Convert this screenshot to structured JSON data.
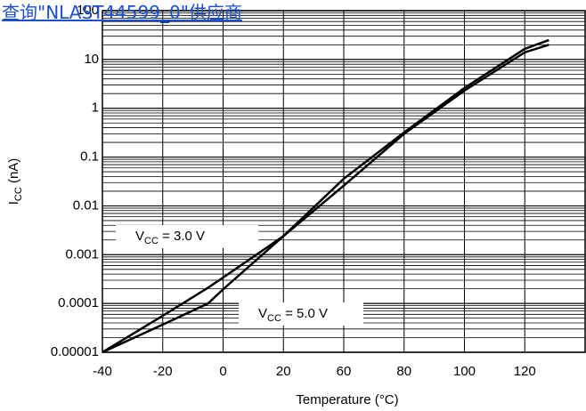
{
  "link": "查询\"NLAST44599_0\"供应商",
  "chart_data": {
    "type": "line",
    "xlabel": "Temperature (°C)",
    "ylabel": {
      "main": "I",
      "sub": "CC",
      "rest": " (nA)"
    },
    "x": [
      -40,
      -20,
      -5,
      0,
      20,
      60,
      80,
      100,
      120,
      128
    ],
    "series": [
      {
        "color": "#000000",
        "values": [
          1e-05,
          5.6e-05,
          0.00021,
          0.00034,
          0.0024,
          0.036,
          0.32,
          2.6,
          16.5,
          25
        ]
      },
      {
        "color": "#000000",
        "values": [
          1e-05,
          3.7e-05,
          0.0001,
          0.000195,
          0.0024,
          0.026,
          0.3,
          2.3,
          14,
          20
        ]
      }
    ],
    "annotations": [
      {
        "main": "V",
        "sub": "CC",
        "rest": " = 3.0 V"
      },
      {
        "main": "V",
        "sub": "CC",
        "rest": " = 5.0 V"
      }
    ],
    "xlim": [
      -40,
      140
    ],
    "xticks": [
      -40,
      -20,
      0,
      20,
      60,
      80,
      100,
      120
    ],
    "ylim": [
      1e-05,
      100
    ],
    "yticks": [
      1e-05,
      0.0001,
      0.001,
      0.01,
      0.1,
      1,
      10,
      100
    ],
    "log_y": true,
    "grid": true,
    "minor_grid": true
  }
}
